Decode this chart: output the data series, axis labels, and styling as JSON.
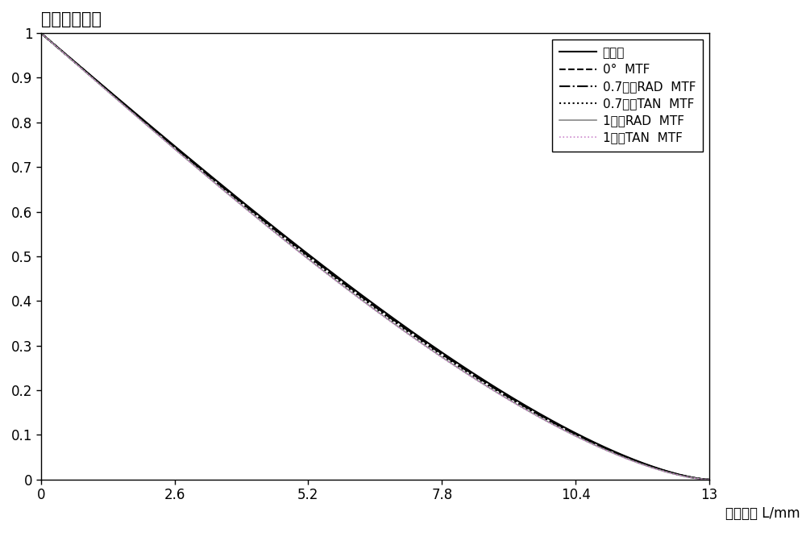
{
  "title": "调制传递函数",
  "xlabel": "空间频率 L/mm",
  "xlim": [
    0,
    13
  ],
  "ylim": [
    0,
    1
  ],
  "xticks": [
    0,
    2.6,
    5.2,
    7.8,
    10.4,
    13
  ],
  "yticks": [
    0,
    0.1,
    0.2,
    0.3,
    0.4,
    0.5,
    0.6,
    0.7,
    0.8,
    0.9,
    1
  ],
  "legend_labels": [
    "衍射限",
    "0°  MTF",
    "0.7视场RAD  MTF",
    "0.7视场TAN  MTF",
    "1视场RAD  MTF",
    "1视场TAN  MTF"
  ],
  "legend_linestyles": [
    "solid",
    "dashed",
    "dashdot",
    "dotted",
    "solid",
    "dotted"
  ],
  "legend_colors": [
    "#000000",
    "#000000",
    "#000000",
    "#000000",
    "#888888",
    "#cc88cc"
  ],
  "legend_linewidths": [
    1.5,
    1.5,
    1.5,
    1.5,
    1.2,
    1.2
  ],
  "background_color": "#ffffff",
  "title_fontsize": 15,
  "label_fontsize": 12,
  "tick_fontsize": 12,
  "legend_fontsize": 11
}
